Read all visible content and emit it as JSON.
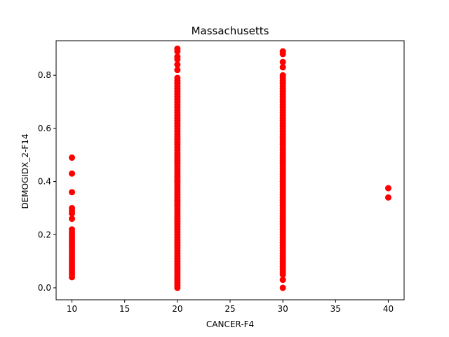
{
  "chart_data": {
    "type": "scatter",
    "title": "Massachusetts",
    "xlabel": "CANCER-F4",
    "ylabel": "DEMOGIDX_2-F14",
    "xlim": [
      8.5,
      41.5
    ],
    "ylim": [
      -0.045,
      0.93
    ],
    "xticks": [
      10,
      15,
      20,
      25,
      30,
      35,
      40
    ],
    "yticks": [
      0.0,
      0.2,
      0.4,
      0.6,
      0.8
    ],
    "xtick_labels": [
      "10",
      "15",
      "20",
      "25",
      "30",
      "35",
      "40"
    ],
    "ytick_labels": [
      "0.0",
      "0.2",
      "0.4",
      "0.6",
      "0.8"
    ],
    "grid": false,
    "legend": "none",
    "colors": {
      "marker": "#ff0000",
      "axes": "#000000",
      "background": "#ffffff"
    },
    "series": [
      {
        "points": [
          [
            10,
            0.04
          ],
          [
            10,
            0.05
          ],
          [
            10,
            0.06
          ],
          [
            10,
            0.07
          ],
          [
            10,
            0.08
          ],
          [
            10,
            0.09
          ],
          [
            10,
            0.1
          ],
          [
            10,
            0.11
          ],
          [
            10,
            0.12
          ],
          [
            10,
            0.13
          ],
          [
            10,
            0.14
          ],
          [
            10,
            0.15
          ],
          [
            10,
            0.16
          ],
          [
            10,
            0.17
          ],
          [
            10,
            0.18
          ],
          [
            10,
            0.19
          ],
          [
            10,
            0.2
          ],
          [
            10,
            0.21
          ],
          [
            10,
            0.22
          ],
          [
            10,
            0.26
          ],
          [
            10,
            0.28
          ],
          [
            10,
            0.29
          ],
          [
            10,
            0.3
          ],
          [
            10,
            0.36
          ],
          [
            10,
            0.43
          ],
          [
            10,
            0.49
          ],
          [
            20,
            0.0
          ],
          [
            20,
            0.01
          ],
          [
            20,
            0.02
          ],
          [
            20,
            0.03
          ],
          [
            20,
            0.04
          ],
          [
            20,
            0.05
          ],
          [
            20,
            0.06
          ],
          [
            20,
            0.07
          ],
          [
            20,
            0.08
          ],
          [
            20,
            0.09
          ],
          [
            20,
            0.1
          ],
          [
            20,
            0.11
          ],
          [
            20,
            0.12
          ],
          [
            20,
            0.13
          ],
          [
            20,
            0.14
          ],
          [
            20,
            0.15
          ],
          [
            20,
            0.16
          ],
          [
            20,
            0.17
          ],
          [
            20,
            0.18
          ],
          [
            20,
            0.19
          ],
          [
            20,
            0.2
          ],
          [
            20,
            0.21
          ],
          [
            20,
            0.22
          ],
          [
            20,
            0.23
          ],
          [
            20,
            0.24
          ],
          [
            20,
            0.25
          ],
          [
            20,
            0.26
          ],
          [
            20,
            0.27
          ],
          [
            20,
            0.28
          ],
          [
            20,
            0.29
          ],
          [
            20,
            0.3
          ],
          [
            20,
            0.31
          ],
          [
            20,
            0.32
          ],
          [
            20,
            0.33
          ],
          [
            20,
            0.34
          ],
          [
            20,
            0.35
          ],
          [
            20,
            0.36
          ],
          [
            20,
            0.37
          ],
          [
            20,
            0.38
          ],
          [
            20,
            0.39
          ],
          [
            20,
            0.4
          ],
          [
            20,
            0.41
          ],
          [
            20,
            0.42
          ],
          [
            20,
            0.43
          ],
          [
            20,
            0.44
          ],
          [
            20,
            0.45
          ],
          [
            20,
            0.46
          ],
          [
            20,
            0.47
          ],
          [
            20,
            0.48
          ],
          [
            20,
            0.49
          ],
          [
            20,
            0.5
          ],
          [
            20,
            0.51
          ],
          [
            20,
            0.52
          ],
          [
            20,
            0.53
          ],
          [
            20,
            0.54
          ],
          [
            20,
            0.55
          ],
          [
            20,
            0.56
          ],
          [
            20,
            0.57
          ],
          [
            20,
            0.58
          ],
          [
            20,
            0.59
          ],
          [
            20,
            0.6
          ],
          [
            20,
            0.61
          ],
          [
            20,
            0.62
          ],
          [
            20,
            0.63
          ],
          [
            20,
            0.64
          ],
          [
            20,
            0.65
          ],
          [
            20,
            0.66
          ],
          [
            20,
            0.67
          ],
          [
            20,
            0.68
          ],
          [
            20,
            0.69
          ],
          [
            20,
            0.7
          ],
          [
            20,
            0.71
          ],
          [
            20,
            0.72
          ],
          [
            20,
            0.73
          ],
          [
            20,
            0.74
          ],
          [
            20,
            0.75
          ],
          [
            20,
            0.76
          ],
          [
            20,
            0.77
          ],
          [
            20,
            0.78
          ],
          [
            20,
            0.79
          ],
          [
            20,
            0.82
          ],
          [
            20,
            0.84
          ],
          [
            20,
            0.86
          ],
          [
            20,
            0.87
          ],
          [
            20,
            0.89
          ],
          [
            20,
            0.9
          ],
          [
            30,
            0.0
          ],
          [
            30,
            0.03
          ],
          [
            30,
            0.05
          ],
          [
            30,
            0.06
          ],
          [
            30,
            0.07
          ],
          [
            30,
            0.08
          ],
          [
            30,
            0.09
          ],
          [
            30,
            0.1
          ],
          [
            30,
            0.11
          ],
          [
            30,
            0.12
          ],
          [
            30,
            0.13
          ],
          [
            30,
            0.14
          ],
          [
            30,
            0.15
          ],
          [
            30,
            0.16
          ],
          [
            30,
            0.17
          ],
          [
            30,
            0.18
          ],
          [
            30,
            0.19
          ],
          [
            30,
            0.2
          ],
          [
            30,
            0.21
          ],
          [
            30,
            0.22
          ],
          [
            30,
            0.23
          ],
          [
            30,
            0.24
          ],
          [
            30,
            0.25
          ],
          [
            30,
            0.26
          ],
          [
            30,
            0.27
          ],
          [
            30,
            0.28
          ],
          [
            30,
            0.29
          ],
          [
            30,
            0.3
          ],
          [
            30,
            0.31
          ],
          [
            30,
            0.32
          ],
          [
            30,
            0.33
          ],
          [
            30,
            0.34
          ],
          [
            30,
            0.35
          ],
          [
            30,
            0.36
          ],
          [
            30,
            0.37
          ],
          [
            30,
            0.38
          ],
          [
            30,
            0.39
          ],
          [
            30,
            0.4
          ],
          [
            30,
            0.41
          ],
          [
            30,
            0.42
          ],
          [
            30,
            0.43
          ],
          [
            30,
            0.44
          ],
          [
            30,
            0.45
          ],
          [
            30,
            0.46
          ],
          [
            30,
            0.47
          ],
          [
            30,
            0.48
          ],
          [
            30,
            0.49
          ],
          [
            30,
            0.5
          ],
          [
            30,
            0.51
          ],
          [
            30,
            0.52
          ],
          [
            30,
            0.53
          ],
          [
            30,
            0.54
          ],
          [
            30,
            0.55
          ],
          [
            30,
            0.56
          ],
          [
            30,
            0.57
          ],
          [
            30,
            0.58
          ],
          [
            30,
            0.59
          ],
          [
            30,
            0.6
          ],
          [
            30,
            0.61
          ],
          [
            30,
            0.62
          ],
          [
            30,
            0.63
          ],
          [
            30,
            0.64
          ],
          [
            30,
            0.65
          ],
          [
            30,
            0.66
          ],
          [
            30,
            0.67
          ],
          [
            30,
            0.68
          ],
          [
            30,
            0.69
          ],
          [
            30,
            0.7
          ],
          [
            30,
            0.71
          ],
          [
            30,
            0.72
          ],
          [
            30,
            0.73
          ],
          [
            30,
            0.74
          ],
          [
            30,
            0.75
          ],
          [
            30,
            0.76
          ],
          [
            30,
            0.77
          ],
          [
            30,
            0.78
          ],
          [
            30,
            0.79
          ],
          [
            30,
            0.8
          ],
          [
            30,
            0.83
          ],
          [
            30,
            0.85
          ],
          [
            30,
            0.88
          ],
          [
            30,
            0.89
          ],
          [
            40,
            0.34
          ],
          [
            40,
            0.375
          ]
        ]
      }
    ]
  }
}
